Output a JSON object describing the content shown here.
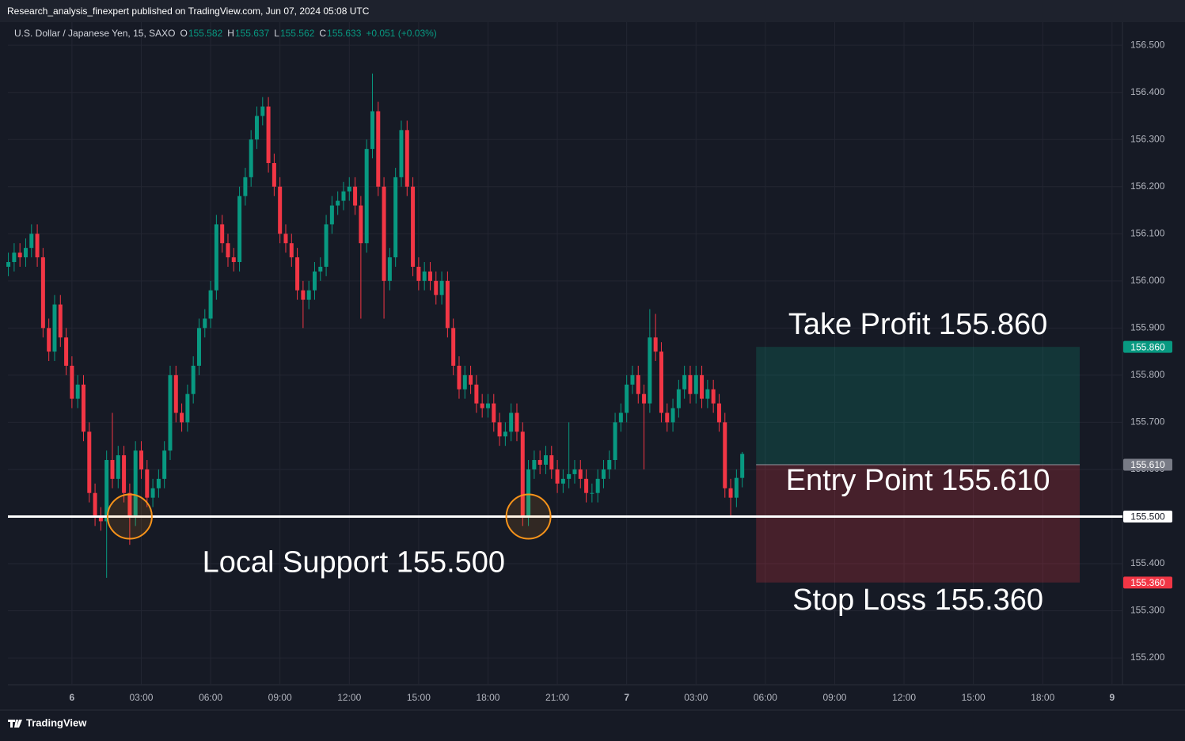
{
  "header": {
    "published": "Research_analysis_finexpert published on TradingView.com, Jun 07, 2024 05:08 UTC",
    "symbol": "U.S. Dollar / Japanese Yen, 15, SAXO",
    "o": "O",
    "h": "H",
    "l": "L",
    "c": "C",
    "change": "+0.051 (+0.03%)"
  },
  "footer": {
    "brand": "TradingView"
  },
  "chart_data": {
    "type": "candlestick",
    "up_color": "#089981",
    "down_color": "#f23645",
    "grid": true,
    "xlim": [
      -2.77,
      45.45
    ],
    "ylim": [
      155.143,
      156.549
    ],
    "xticks": [
      {
        "value": 0,
        "label": "6"
      },
      {
        "value": 3,
        "label": "03:00"
      },
      {
        "value": 6,
        "label": "06:00"
      },
      {
        "value": 9,
        "label": "09:00"
      },
      {
        "value": 12,
        "label": "12:00"
      },
      {
        "value": 15,
        "label": "15:00"
      },
      {
        "value": 18,
        "label": "18:00"
      },
      {
        "value": 21,
        "label": "21:00"
      },
      {
        "value": 24,
        "label": "7"
      },
      {
        "value": 27,
        "label": "03:00"
      },
      {
        "value": 30,
        "label": "06:00"
      },
      {
        "value": 33,
        "label": "09:00"
      },
      {
        "value": 36,
        "label": "12:00"
      },
      {
        "value": 39,
        "label": "15:00"
      },
      {
        "value": 42,
        "label": "18:00"
      },
      {
        "value": 45,
        "label": "9"
      }
    ],
    "yticks": [
      {
        "value": 155.2,
        "label": "155.200"
      },
      {
        "value": 155.3,
        "label": "155.300"
      },
      {
        "value": 155.4,
        "label": "155.400"
      },
      {
        "value": 155.6,
        "label": "155.600"
      },
      {
        "value": 155.7,
        "label": "155.700"
      },
      {
        "value": 155.8,
        "label": "155.800"
      },
      {
        "value": 155.9,
        "label": "155.900"
      },
      {
        "value": 156.0,
        "label": "156.000"
      },
      {
        "value": 156.1,
        "label": "156.100"
      },
      {
        "value": 156.2,
        "label": "156.200"
      },
      {
        "value": 156.3,
        "label": "156.300"
      },
      {
        "value": 156.4,
        "label": "156.400"
      },
      {
        "value": 156.5,
        "label": "156.500"
      }
    ],
    "x": [
      -2.75,
      -2.5,
      -2.25,
      -2,
      -1.75,
      -1.5,
      -1.25,
      -1,
      -0.75,
      -0.5,
      -0.25,
      0,
      0.25,
      0.5,
      0.75,
      1,
      1.25,
      1.5,
      1.75,
      2,
      2.25,
      2.5,
      2.75,
      3,
      3.25,
      3.5,
      3.75,
      4,
      4.25,
      4.5,
      4.75,
      5,
      5.25,
      5.5,
      5.75,
      6,
      6.25,
      6.5,
      6.75,
      7,
      7.25,
      7.5,
      7.75,
      8,
      8.25,
      8.5,
      8.75,
      9,
      9.25,
      9.5,
      9.75,
      10,
      10.25,
      10.5,
      10.75,
      11,
      11.25,
      11.5,
      11.75,
      12,
      12.25,
      12.5,
      12.75,
      13,
      13.25,
      13.5,
      13.75,
      14,
      14.25,
      14.5,
      14.75,
      15,
      15.25,
      15.5,
      15.75,
      16,
      16.25,
      16.5,
      16.75,
      17,
      17.25,
      17.5,
      17.75,
      18,
      18.25,
      18.5,
      18.75,
      19,
      19.25,
      19.5,
      19.75,
      20,
      20.25,
      20.5,
      20.75,
      21,
      21.25,
      21.5,
      21.75,
      22,
      22.25,
      22.5,
      22.75,
      23,
      23.25,
      23.5,
      23.75,
      24,
      24.25,
      24.5,
      24.75,
      25,
      25.25,
      25.5,
      25.75,
      26,
      26.25,
      26.5,
      26.75,
      27,
      27.25,
      27.5,
      27.75,
      28,
      28.25,
      28.5,
      28.75,
      29
    ],
    "open": [
      156.03,
      156.04,
      156.06,
      156.05,
      156.07,
      156.1,
      156.05,
      155.9,
      155.85,
      155.95,
      155.88,
      155.82,
      155.75,
      155.78,
      155.68,
      155.55,
      155.5,
      155.49,
      155.62,
      155.58,
      155.63,
      155.55,
      155.5,
      155.64,
      155.6,
      155.54,
      155.56,
      155.58,
      155.64,
      155.8,
      155.72,
      155.7,
      155.76,
      155.82,
      155.9,
      155.92,
      155.98,
      156.12,
      156.08,
      156.05,
      156.04,
      156.18,
      156.22,
      156.3,
      156.35,
      156.37,
      156.25,
      156.2,
      156.1,
      156.08,
      156.05,
      155.98,
      155.96,
      155.98,
      156.02,
      156.03,
      156.12,
      156.16,
      156.17,
      156.19,
      156.2,
      156.16,
      156.08,
      156.28,
      156.36,
      156.2,
      156,
      156.05,
      156.22,
      156.32,
      156.2,
      156.03,
      156,
      156.02,
      156,
      155.97,
      156,
      155.9,
      155.82,
      155.77,
      155.8,
      155.78,
      155.74,
      155.73,
      155.74,
      155.7,
      155.67,
      155.68,
      155.72,
      155.68,
      155.5,
      155.6,
      155.62,
      155.61,
      155.63,
      155.6,
      155.57,
      155.58,
      155.59,
      155.6,
      155.58,
      155.55,
      155.55,
      155.58,
      155.6,
      155.62,
      155.7,
      155.72,
      155.78,
      155.8,
      155.76,
      155.74,
      155.88,
      155.85,
      155.72,
      155.7,
      155.73,
      155.77,
      155.8,
      155.76,
      155.8,
      155.75,
      155.77,
      155.74,
      155.7,
      155.56,
      155.54,
      155.582
    ],
    "high": [
      156.06,
      156.08,
      156.08,
      156.09,
      156.12,
      156.12,
      156.07,
      155.92,
      155.97,
      155.97,
      155.9,
      155.84,
      155.8,
      155.8,
      155.7,
      155.57,
      155.52,
      155.64,
      155.72,
      155.65,
      155.65,
      155.57,
      155.66,
      155.66,
      155.62,
      155.58,
      155.6,
      155.66,
      155.82,
      155.82,
      155.74,
      155.78,
      155.84,
      155.92,
      155.94,
      156,
      156.14,
      156.14,
      156.1,
      156.07,
      156.2,
      156.24,
      156.32,
      156.37,
      156.39,
      156.39,
      156.27,
      156.22,
      156.12,
      156.1,
      156.07,
      156,
      156,
      156.04,
      156.05,
      156.14,
      156.18,
      156.19,
      156.21,
      156.22,
      156.22,
      156.18,
      156.3,
      156.44,
      156.38,
      156.22,
      156.07,
      156.24,
      156.34,
      156.34,
      156.22,
      156.05,
      156.04,
      156.04,
      156.02,
      156.02,
      156.02,
      155.92,
      155.84,
      155.82,
      155.82,
      155.8,
      155.76,
      155.76,
      155.76,
      155.72,
      155.7,
      155.74,
      155.74,
      155.7,
      155.62,
      155.64,
      155.64,
      155.65,
      155.65,
      155.62,
      155.6,
      155.7,
      155.62,
      155.62,
      155.6,
      155.57,
      155.6,
      155.62,
      155.64,
      155.72,
      155.74,
      155.8,
      155.82,
      155.82,
      155.78,
      155.94,
      155.93,
      155.87,
      155.74,
      155.75,
      155.79,
      155.82,
      155.82,
      155.82,
      155.82,
      155.79,
      155.79,
      155.76,
      155.72,
      155.58,
      155.6,
      155.637
    ],
    "low": [
      156.01,
      156.02,
      156.03,
      156.03,
      156.05,
      156.03,
      155.88,
      155.83,
      155.83,
      155.86,
      155.8,
      155.73,
      155.73,
      155.66,
      155.53,
      155.48,
      155.47,
      155.37,
      155.56,
      155.56,
      155.53,
      155.44,
      155.48,
      155.58,
      155.52,
      155.52,
      155.54,
      155.56,
      155.62,
      155.7,
      155.68,
      155.68,
      155.74,
      155.8,
      155.88,
      155.9,
      155.96,
      156.06,
      156.03,
      156.02,
      156.02,
      156.16,
      156.2,
      156.28,
      156.33,
      156.23,
      156.18,
      156.08,
      156.06,
      156.03,
      155.96,
      155.9,
      155.94,
      155.96,
      156,
      156.01,
      156.1,
      156.14,
      156.15,
      156.17,
      156.14,
      155.92,
      156.06,
      156.26,
      156.18,
      155.92,
      155.98,
      156.03,
      156.2,
      156.18,
      156.01,
      155.98,
      155.98,
      155.98,
      155.95,
      155.95,
      155.88,
      155.8,
      155.75,
      155.75,
      155.76,
      155.72,
      155.71,
      155.71,
      155.68,
      155.65,
      155.65,
      155.66,
      155.66,
      155.48,
      155.48,
      155.58,
      155.59,
      155.59,
      155.58,
      155.55,
      155.55,
      155.56,
      155.57,
      155.56,
      155.53,
      155.53,
      155.53,
      155.56,
      155.58,
      155.6,
      155.68,
      155.7,
      155.76,
      155.74,
      155.6,
      155.72,
      155.83,
      155.7,
      155.68,
      155.68,
      155.71,
      155.75,
      155.74,
      155.74,
      155.73,
      155.73,
      155.72,
      155.68,
      155.54,
      155.5,
      155.52,
      155.562
    ],
    "close": [
      156.04,
      156.06,
      156.05,
      156.07,
      156.1,
      156.05,
      155.9,
      155.85,
      155.95,
      155.88,
      155.82,
      155.75,
      155.78,
      155.68,
      155.55,
      155.5,
      155.49,
      155.62,
      155.58,
      155.63,
      155.55,
      155.5,
      155.64,
      155.6,
      155.54,
      155.56,
      155.58,
      155.64,
      155.8,
      155.72,
      155.7,
      155.76,
      155.82,
      155.9,
      155.92,
      155.98,
      156.12,
      156.08,
      156.05,
      156.04,
      156.18,
      156.22,
      156.3,
      156.35,
      156.37,
      156.25,
      156.2,
      156.1,
      156.08,
      156.05,
      155.98,
      155.96,
      155.98,
      156.02,
      156.03,
      156.12,
      156.16,
      156.17,
      156.19,
      156.2,
      156.16,
      156.08,
      156.28,
      156.36,
      156.2,
      156,
      156.05,
      156.22,
      156.32,
      156.2,
      156.03,
      156,
      156.02,
      156,
      155.97,
      156,
      155.9,
      155.82,
      155.77,
      155.8,
      155.78,
      155.74,
      155.73,
      155.74,
      155.7,
      155.67,
      155.68,
      155.72,
      155.68,
      155.5,
      155.6,
      155.62,
      155.61,
      155.63,
      155.6,
      155.57,
      155.58,
      155.59,
      155.6,
      155.58,
      155.55,
      155.55,
      155.58,
      155.6,
      155.62,
      155.7,
      155.72,
      155.78,
      155.8,
      155.76,
      155.74,
      155.88,
      155.85,
      155.72,
      155.7,
      155.73,
      155.77,
      155.8,
      155.76,
      155.8,
      155.75,
      155.77,
      155.74,
      155.7,
      155.56,
      155.54,
      155.582,
      155.633
    ],
    "support": {
      "value": 155.5,
      "label": "Local Support 155.500",
      "badge": "155.500",
      "color": "#ffffff"
    },
    "highlights": {
      "color": "#f7931a",
      "x": [
        2.5,
        19.75
      ],
      "y": [
        155.5,
        155.5
      ]
    },
    "position": {
      "start": 29.6,
      "end": 43.6,
      "take_profit": 155.86,
      "take_profit_label": "Take Profit 155.860",
      "take_profit_badge": "155.860",
      "profit_color": "#089981",
      "entry": 155.61,
      "entry_label": "Entry Point 155.610",
      "entry_badge": "155.610",
      "entry_color": "#787b86",
      "stop_loss": 155.36,
      "stop_loss_label": "Stop Loss 155.360",
      "stop_loss_badge": "155.360",
      "loss_color": "#f23645"
    }
  }
}
